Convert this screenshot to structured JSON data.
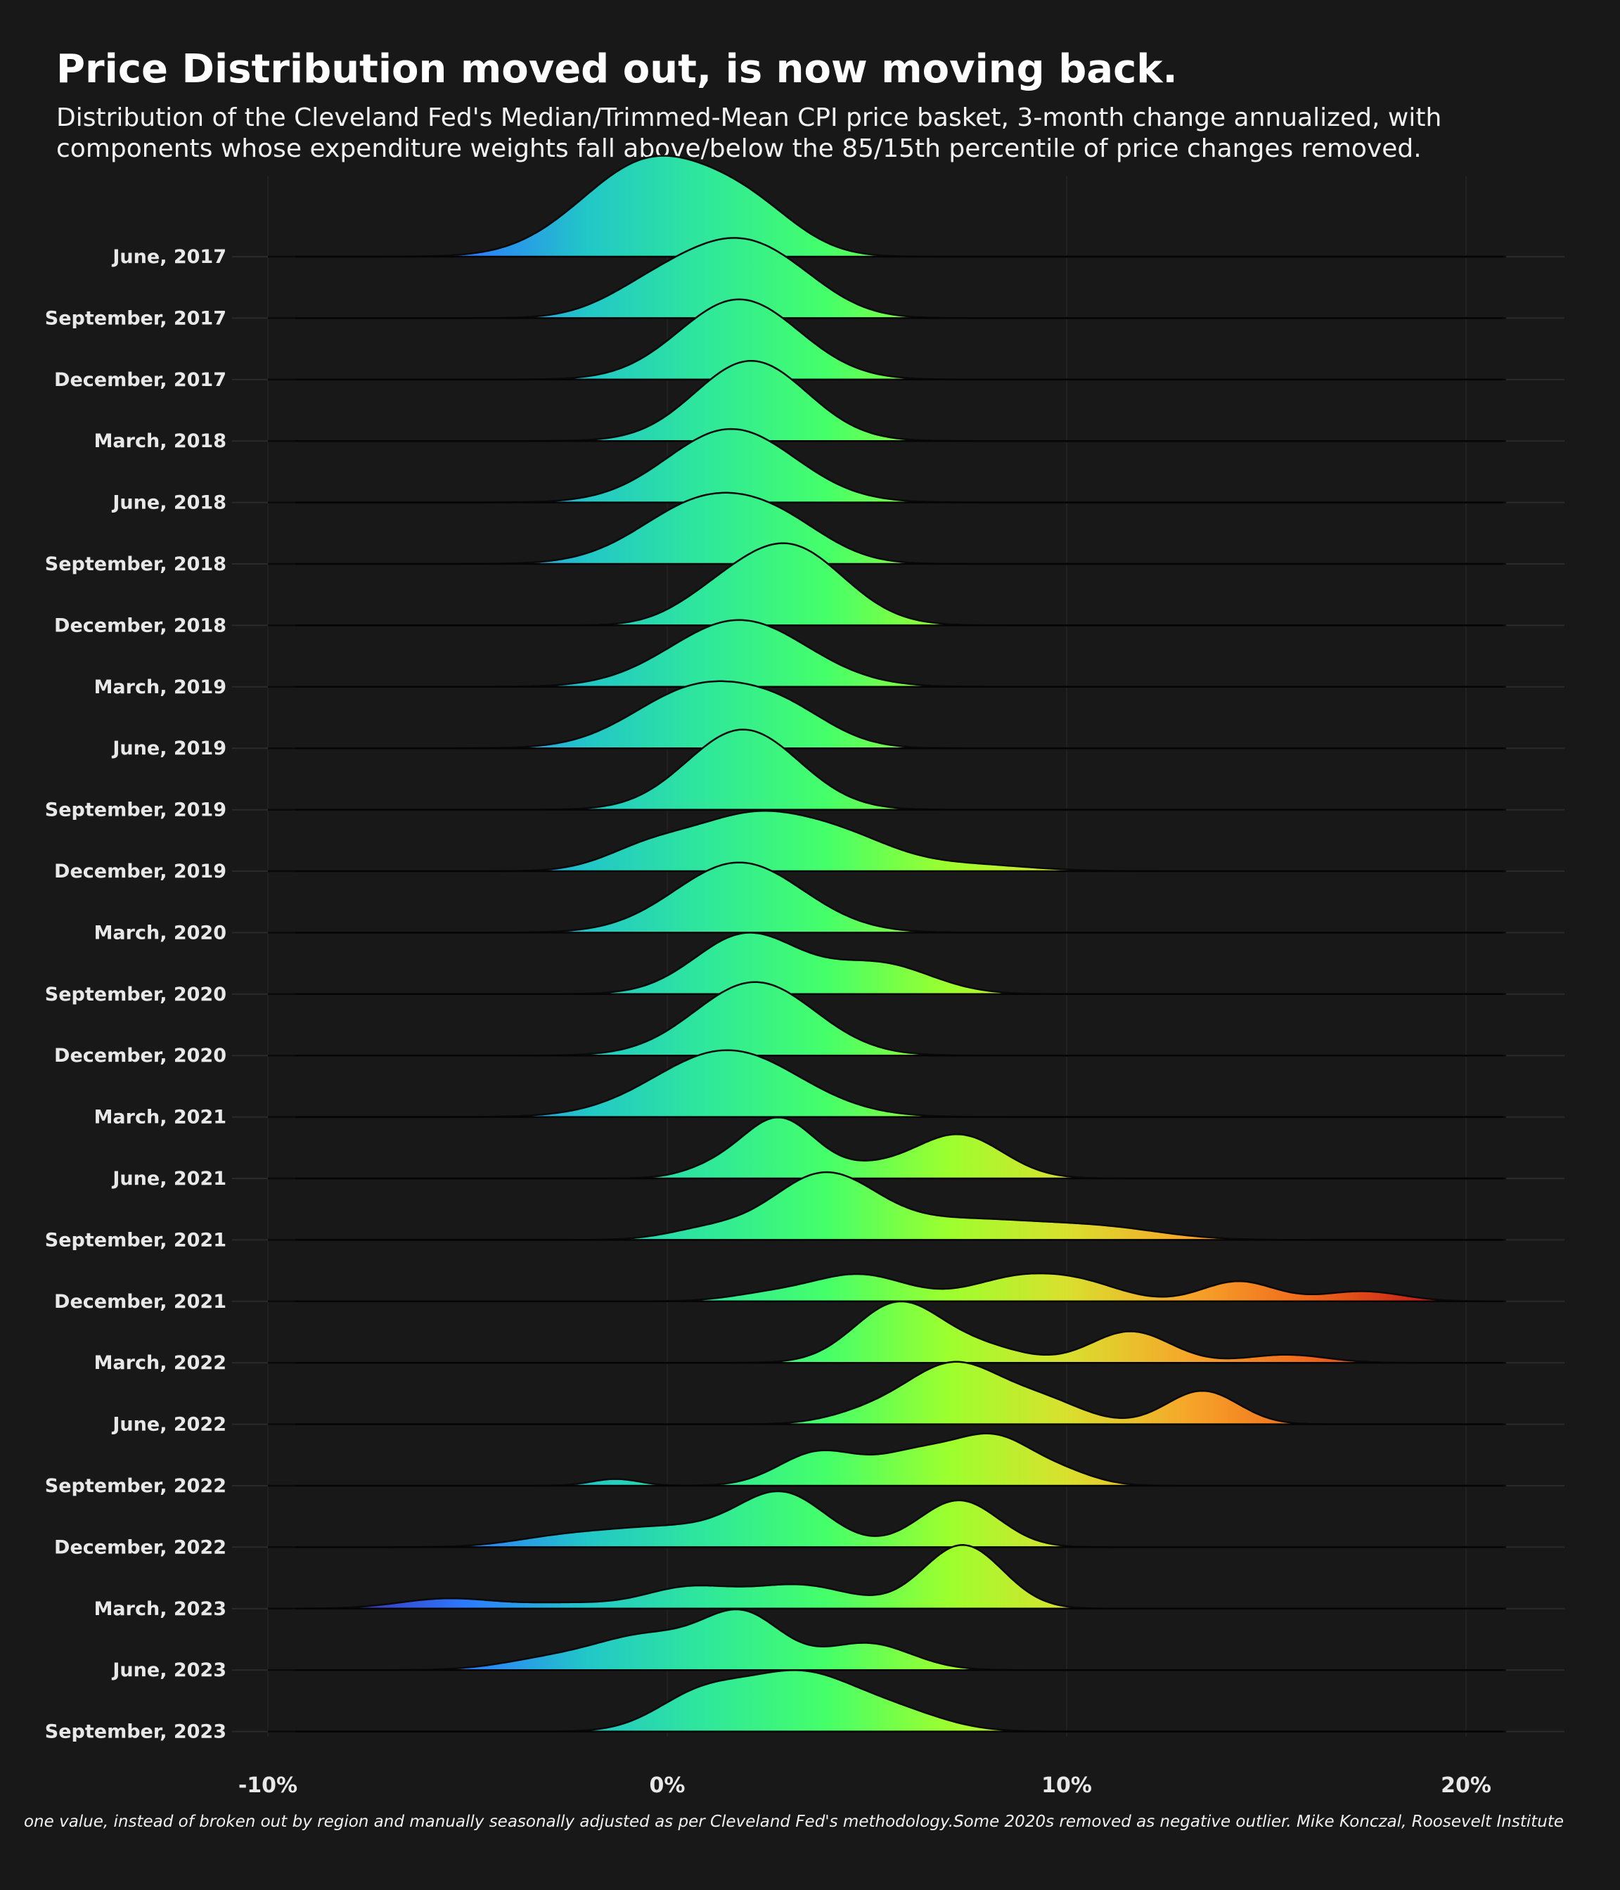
{
  "title": "Price Distribution moved out, is now moving back.",
  "subtitle": "Distribution of the Cleveland Fed's Median/Trimmed-Mean CPI price basket, 3-month change annualized, with components whose expenditure weights fall above/below the 85/15th percentile of price changes removed.",
  "caption": "one value, instead of broken out by region and manually seasonally adjusted as per Cleveland Fed's methodology.Some 2020s removed as negative outlier. Mike Konczal, Roosevelt Institute",
  "chart_data": {
    "type": "ridgeline",
    "x_range": [
      -10,
      21
    ],
    "x_ticks": [
      {
        "value": -10,
        "label": "-10%"
      },
      {
        "value": 0,
        "label": "0%"
      },
      {
        "value": 10,
        "label": "10%"
      },
      {
        "value": 20,
        "label": "20%"
      }
    ],
    "color_scale": {
      "min": -8,
      "max": 19,
      "colors": [
        "#3a2fb5",
        "#2c7bff",
        "#22c7c7",
        "#2fe89a",
        "#45ff6a",
        "#9cff2e",
        "#d9e02e",
        "#f6a62a",
        "#f16a1c",
        "#c82014"
      ]
    },
    "grid": true,
    "rows": [
      {
        "label": "June, 2017",
        "modes": [
          [
            -1.0,
            1.6,
            0.9
          ],
          [
            0.4,
            1.5,
            0.7
          ],
          [
            2.2,
            1.2,
            0.5
          ]
        ]
      },
      {
        "label": "September, 2017",
        "modes": [
          [
            1.6,
            1.4,
            1.0
          ],
          [
            -0.5,
            1.2,
            0.35
          ],
          [
            3.2,
            1.2,
            0.3
          ]
        ]
      },
      {
        "label": "December, 2017",
        "modes": [
          [
            1.8,
            1.5,
            1.2
          ]
        ]
      },
      {
        "label": "March, 2018",
        "modes": [
          [
            2.1,
            1.4,
            1.2
          ]
        ]
      },
      {
        "label": "June, 2018",
        "modes": [
          [
            1.6,
            1.6,
            1.1
          ]
        ]
      },
      {
        "label": "September, 2018",
        "modes": [
          [
            1.0,
            1.6,
            0.95
          ],
          [
            3.0,
            1.2,
            0.35
          ]
        ]
      },
      {
        "label": "December, 2018",
        "modes": [
          [
            3.0,
            1.4,
            1.2
          ],
          [
            1.0,
            1.0,
            0.2
          ]
        ]
      },
      {
        "label": "March, 2019",
        "modes": [
          [
            1.8,
            1.7,
            1.0
          ]
        ]
      },
      {
        "label": "June, 2019",
        "modes": [
          [
            0.8,
            1.6,
            0.9
          ],
          [
            3.0,
            1.2,
            0.4
          ]
        ]
      },
      {
        "label": "September, 2019",
        "modes": [
          [
            1.9,
            1.4,
            1.2
          ]
        ]
      },
      {
        "label": "December, 2019",
        "modes": [
          [
            2.1,
            1.5,
            0.8
          ],
          [
            -0.5,
            1.1,
            0.3
          ],
          [
            4.5,
            1.3,
            0.4
          ],
          [
            7.5,
            1.5,
            0.1
          ]
        ]
      },
      {
        "label": "March, 2020",
        "modes": [
          [
            1.8,
            1.6,
            1.05
          ]
        ]
      },
      {
        "label": "September, 2020",
        "modes": [
          [
            2.0,
            1.3,
            0.9
          ],
          [
            5.3,
            1.3,
            0.45
          ]
        ]
      },
      {
        "label": "December, 2020",
        "modes": [
          [
            2.2,
            1.5,
            1.1
          ]
        ]
      },
      {
        "label": "March, 2021",
        "modes": [
          [
            1.5,
            1.8,
            1.0
          ]
        ]
      },
      {
        "label": "June, 2021",
        "modes": [
          [
            2.8,
            0.9,
            0.88
          ],
          [
            7.3,
            1.1,
            0.65
          ],
          [
            1.2,
            0.8,
            0.15
          ],
          [
            5.0,
            1.0,
            0.15
          ]
        ]
      },
      {
        "label": "September, 2021",
        "modes": [
          [
            3.9,
            1.3,
            0.95
          ],
          [
            7.5,
            2.0,
            0.3
          ],
          [
            11.0,
            1.5,
            0.15
          ],
          [
            1.0,
            1.0,
            0.15
          ]
        ]
      },
      {
        "label": "December, 2021",
        "modes": [
          [
            4.8,
            1.2,
            0.4
          ],
          [
            8.8,
            1.2,
            0.35
          ],
          [
            10.5,
            1.0,
            0.2
          ],
          [
            14.3,
            0.9,
            0.3
          ],
          [
            17.4,
            1.0,
            0.15
          ],
          [
            2.5,
            1.0,
            0.1
          ]
        ]
      },
      {
        "label": "March, 2022",
        "modes": [
          [
            5.8,
            1.1,
            0.9
          ],
          [
            11.6,
            1.0,
            0.47
          ],
          [
            15.5,
            1.0,
            0.12
          ],
          [
            8.0,
            1.0,
            0.2
          ]
        ]
      },
      {
        "label": "June, 2022",
        "modes": [
          [
            7.2,
            1.2,
            0.9
          ],
          [
            13.4,
            0.9,
            0.5
          ],
          [
            9.5,
            1.0,
            0.3
          ],
          [
            5.0,
            1.0,
            0.15
          ]
        ]
      },
      {
        "label": "September, 2022",
        "modes": [
          [
            8.2,
            1.0,
            0.7
          ],
          [
            3.8,
            1.0,
            0.5
          ],
          [
            6.2,
            1.0,
            0.45
          ],
          [
            -1.3,
            0.6,
            0.1
          ],
          [
            10.0,
            0.8,
            0.15
          ]
        ]
      },
      {
        "label": "December, 2022",
        "modes": [
          [
            2.9,
            1.1,
            0.75
          ],
          [
            7.3,
            1.0,
            0.7
          ],
          [
            0.0,
            1.8,
            0.3
          ],
          [
            -2.8,
            1.2,
            0.1
          ]
        ]
      },
      {
        "label": "March, 2023",
        "modes": [
          [
            7.4,
            1.0,
            0.95
          ],
          [
            3.3,
            1.3,
            0.35
          ],
          [
            0.5,
            1.1,
            0.3
          ],
          [
            -5.5,
            1.2,
            0.15
          ],
          [
            -2.5,
            1.2,
            0.08
          ]
        ]
      },
      {
        "label": "June, 2023",
        "modes": [
          [
            1.9,
            1.0,
            0.8
          ],
          [
            -0.5,
            1.3,
            0.5
          ],
          [
            5.0,
            1.1,
            0.4
          ],
          [
            -3.0,
            1.2,
            0.15
          ]
        ]
      },
      {
        "label": "September, 2023",
        "modes": [
          [
            3.3,
            1.4,
            0.85
          ],
          [
            0.8,
            1.1,
            0.5
          ],
          [
            5.8,
            1.2,
            0.25
          ]
        ]
      }
    ]
  }
}
